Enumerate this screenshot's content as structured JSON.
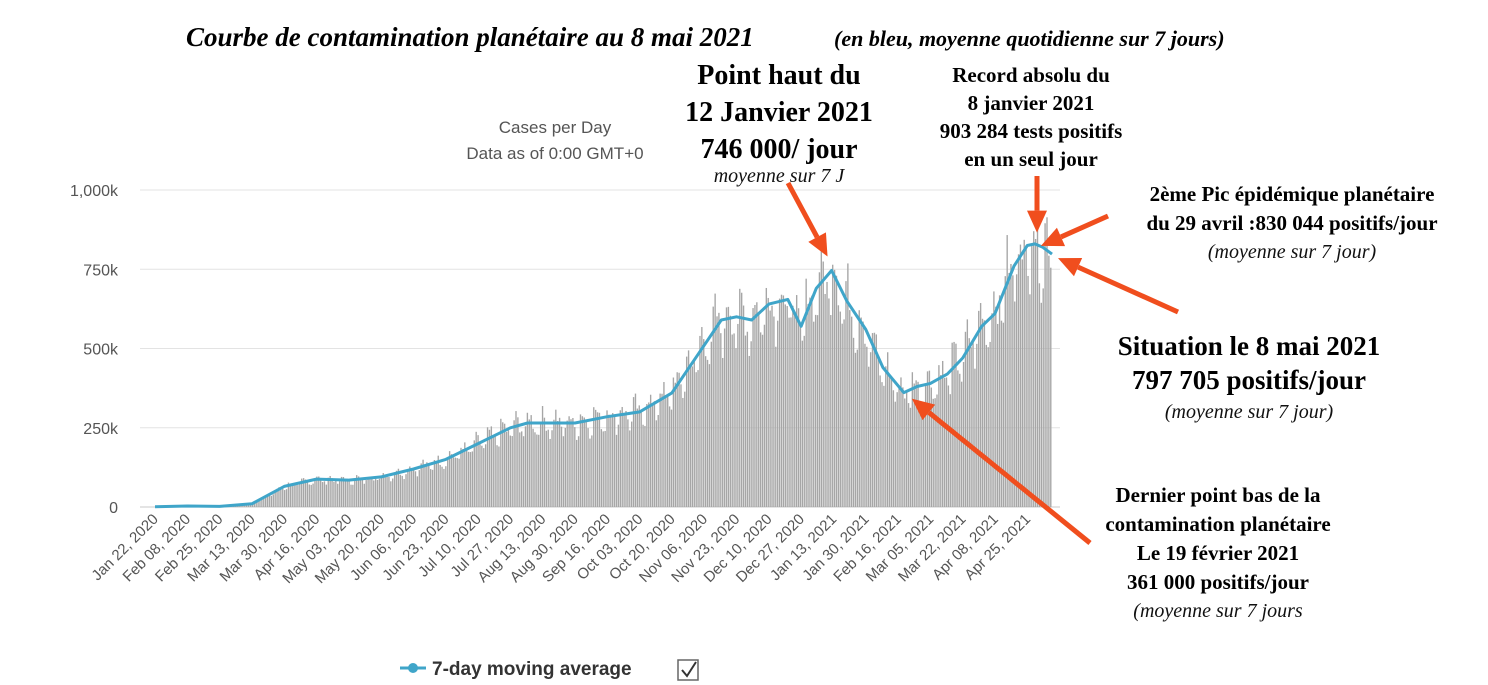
{
  "page_title": "Courbe de contamination planétaire au 8 mai 2021",
  "page_subtitle": "(en bleu, moyenne quotidienne sur 7 jours)",
  "chart_data": {
    "type": "bar",
    "title": "Cases per Day",
    "subtitle": "Data as of 0:00 GMT+0",
    "ylim": [
      0,
      1000000
    ],
    "y_ticks": [
      0,
      250000,
      500000,
      750000,
      1000000
    ],
    "y_tick_labels": [
      "0",
      "250k",
      "500k",
      "750k",
      "1,000k"
    ],
    "grid": true,
    "x_tick_labels": [
      "Jan 22, 2020",
      "Feb 08, 2020",
      "Feb 25, 2020",
      "Mar 13, 2020",
      "Mar 30, 2020",
      "Apr 16, 2020",
      "May 03, 2020",
      "May 20, 2020",
      "Jun 06, 2020",
      "Jun 23, 2020",
      "Jul 10, 2020",
      "Jul 27, 2020",
      "Aug 13, 2020",
      "Aug 30, 2020",
      "Sep 16, 2020",
      "Oct 03, 2020",
      "Oct 20, 2020",
      "Nov 06, 2020",
      "Nov 23, 2020",
      "Dec 10, 2020",
      "Dec 27, 2020",
      "Jan 13, 2021",
      "Jan 30, 2021",
      "Feb 16, 2021",
      "Mar 05, 2021",
      "Mar 22, 2021",
      "Apr 08, 2021",
      "Apr 25, 2021"
    ],
    "x_range": [
      "2020-01-22",
      "2021-05-08"
    ],
    "legend": {
      "position": "bottom-left",
      "label": "7-day moving average",
      "checked": true
    },
    "series": [
      {
        "name": "7-day moving average",
        "color": "#3fa5c9",
        "points": [
          [
            "2020-01-22",
            1000
          ],
          [
            "2020-02-08",
            3000
          ],
          [
            "2020-02-25",
            2000
          ],
          [
            "2020-03-13",
            10000
          ],
          [
            "2020-03-30",
            65000
          ],
          [
            "2020-04-16",
            88000
          ],
          [
            "2020-05-03",
            85000
          ],
          [
            "2020-05-20",
            95000
          ],
          [
            "2020-06-06",
            120000
          ],
          [
            "2020-06-23",
            150000
          ],
          [
            "2020-07-10",
            200000
          ],
          [
            "2020-07-27",
            250000
          ],
          [
            "2020-08-05",
            265000
          ],
          [
            "2020-08-13",
            265000
          ],
          [
            "2020-08-30",
            265000
          ],
          [
            "2020-09-16",
            285000
          ],
          [
            "2020-10-03",
            300000
          ],
          [
            "2020-10-20",
            360000
          ],
          [
            "2020-11-06",
            510000
          ],
          [
            "2020-11-15",
            590000
          ],
          [
            "2020-11-23",
            600000
          ],
          [
            "2020-12-01",
            590000
          ],
          [
            "2020-12-10",
            640000
          ],
          [
            "2020-12-20",
            655000
          ],
          [
            "2020-12-27",
            570000
          ],
          [
            "2021-01-04",
            690000
          ],
          [
            "2021-01-12",
            746000
          ],
          [
            "2021-01-20",
            650000
          ],
          [
            "2021-01-30",
            560000
          ],
          [
            "2021-02-08",
            440000
          ],
          [
            "2021-02-19",
            361000
          ],
          [
            "2021-02-26",
            380000
          ],
          [
            "2021-03-05",
            390000
          ],
          [
            "2021-03-14",
            420000
          ],
          [
            "2021-03-22",
            470000
          ],
          [
            "2021-04-01",
            570000
          ],
          [
            "2021-04-08",
            610000
          ],
          [
            "2021-04-18",
            760000
          ],
          [
            "2021-04-25",
            825000
          ],
          [
            "2021-04-29",
            830044
          ],
          [
            "2021-05-03",
            820000
          ],
          [
            "2021-05-08",
            797705
          ]
        ]
      }
    ],
    "bar_color": "#a6a6a6"
  },
  "annotations": [
    {
      "id": "peak-jan12",
      "lines": [
        "Point haut du",
        "12 Janvier 2021",
        "746 000/ jour"
      ],
      "note": "moyenne sur 7 J",
      "date": "2021-01-12",
      "value": 746000
    },
    {
      "id": "record-jan8",
      "lines": [
        "Record absolu du",
        "8 janvier 2021",
        "903 284 tests positifs",
        "en un seul jour"
      ],
      "date": "2021-01-08",
      "value": 903284
    },
    {
      "id": "peak-apr29",
      "lines": [
        "2ème Pic épidémique planétaire",
        "du 29 avril :830 044 positifs/jour"
      ],
      "note": "(moyenne sur 7 jour)",
      "date": "2021-04-29",
      "value": 830044
    },
    {
      "id": "situation-may8",
      "lines": [
        "Situation le 8 mai 2021",
        "797 705 positifs/jour"
      ],
      "note": "(moyenne sur 7 jour)",
      "date": "2021-05-08",
      "value": 797705
    },
    {
      "id": "low-feb19",
      "lines": [
        "Dernier point bas de la",
        "contamination planétaire",
        "Le 19 février 2021",
        "361 000 positifs/jour"
      ],
      "note": "(moyenne sur 7 jours",
      "date": "2021-02-19",
      "value": 361000
    }
  ],
  "arrow_color": "#f04e1e"
}
